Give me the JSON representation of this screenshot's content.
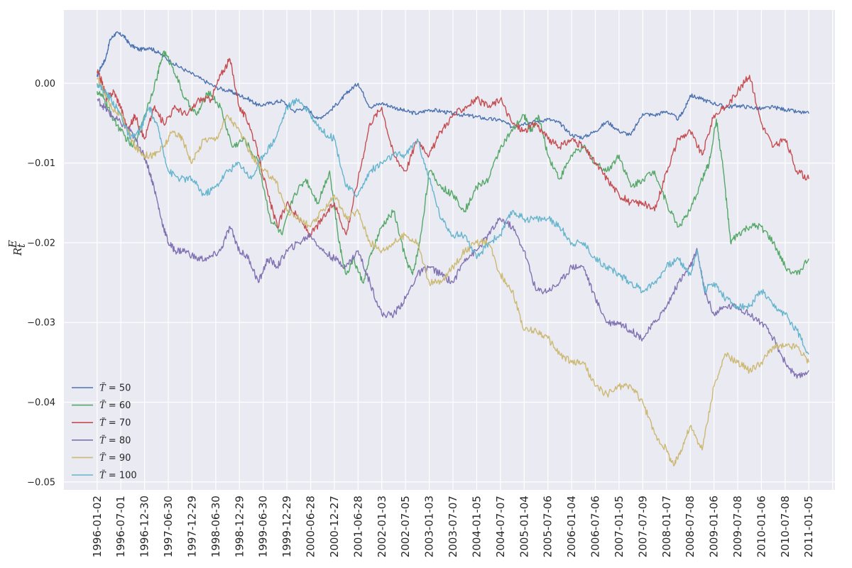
{
  "chart_data": {
    "type": "line",
    "ylabel": "R_t^E",
    "ylim": [
      -0.051,
      0.0092
    ],
    "yticks": [
      0.0,
      -0.01,
      -0.02,
      -0.03,
      -0.04,
      -0.05
    ],
    "ytick_labels": [
      "0.00",
      "−0.01",
      "−0.02",
      "−0.03",
      "−0.04",
      "−0.05"
    ],
    "x_ticks": [
      "1996-01-02",
      "1996-07-01",
      "1996-12-30",
      "1997-06-30",
      "1997-12-29",
      "1998-06-30",
      "1998-12-29",
      "1999-06-30",
      "1999-12-29",
      "2000-06-28",
      "2000-12-27",
      "2001-06-28",
      "2002-01-03",
      "2002-07-05",
      "2003-01-03",
      "2003-07-07",
      "2004-01-05",
      "2004-07-07",
      "2005-01-04",
      "2005-07-06",
      "2006-01-04",
      "2006-07-06",
      "2007-01-05",
      "2007-07-09",
      "2008-01-07",
      "2008-07-08",
      "2009-01-06",
      "2009-07-08",
      "2010-01-06",
      "2010-07-08",
      "2011-01-05"
    ],
    "xlim": [
      -1.4,
      31.1
    ],
    "grid": true,
    "legend_placement": "bottom-left",
    "colors": {
      "background": "#eaeaf2",
      "grid": "#ffffff",
      "text": "#262626"
    },
    "series": [
      {
        "name": "T = 50",
        "color": "#4c72b0",
        "x": [
          0,
          0.15,
          0.35,
          0.55,
          0.8,
          1.1,
          1.4,
          1.8,
          2.2,
          2.6,
          3.2,
          3.8,
          4.4,
          5.0,
          5.6,
          6.0,
          6.4,
          6.8,
          7.3,
          7.8,
          8.3,
          8.8,
          9.3,
          9.8,
          10.3,
          10.6,
          11.0,
          11.5,
          12.0,
          12.5,
          13.0,
          13.5,
          14.0,
          14.5,
          15.0,
          15.5,
          16.0,
          16.5,
          17.0,
          17.5,
          18.0,
          18.5,
          19.0,
          19.5,
          20.0,
          20.5,
          21.0,
          21.5,
          22.0,
          22.5,
          23.0,
          23.5,
          24.0,
          24.5,
          24.8,
          25.0,
          25.5,
          26.0,
          26.5,
          27.0,
          27.5,
          28.0,
          28.5,
          29.0,
          29.5,
          30.0
        ],
        "y": [
          0.0008,
          0.002,
          0.003,
          0.0055,
          0.0063,
          0.006,
          0.0048,
          0.0042,
          0.0045,
          0.0038,
          0.0025,
          0.0015,
          0.0005,
          -0.0005,
          -0.001,
          -0.0015,
          -0.002,
          -0.0028,
          -0.0025,
          -0.0022,
          -0.0035,
          -0.003,
          -0.0045,
          -0.0035,
          -0.002,
          -0.001,
          0.0,
          -0.003,
          -0.0025,
          -0.003,
          -0.0035,
          -0.0038,
          -0.0033,
          -0.0035,
          -0.0038,
          -0.004,
          -0.0042,
          -0.0045,
          -0.0046,
          -0.0055,
          -0.005,
          -0.0048,
          -0.0045,
          -0.005,
          -0.0065,
          -0.0068,
          -0.006,
          -0.0048,
          -0.006,
          -0.0065,
          -0.0038,
          -0.004,
          -0.0035,
          -0.0045,
          -0.003,
          -0.0015,
          -0.002,
          -0.0025,
          -0.003,
          -0.0028,
          -0.003,
          -0.0032,
          -0.003,
          -0.0033,
          -0.0036,
          -0.0038
        ]
      },
      {
        "name": "T = 60",
        "color": "#55a868",
        "x": [
          0,
          0.3,
          0.6,
          1.0,
          1.5,
          2.0,
          2.5,
          2.8,
          3.2,
          3.7,
          4.2,
          4.7,
          5.2,
          5.7,
          6.2,
          6.8,
          7.3,
          7.8,
          8.3,
          8.8,
          9.3,
          9.8,
          10.2,
          10.5,
          10.8,
          11.2,
          11.6,
          12.0,
          12.5,
          13.0,
          13.3,
          13.6,
          14.0,
          14.5,
          15.0,
          15.5,
          16.0,
          16.5,
          17.0,
          17.5,
          18.0,
          18.3,
          18.6,
          19.0,
          19.5,
          20.0,
          20.5,
          21.0,
          21.5,
          22.0,
          22.5,
          23.0,
          23.5,
          24.0,
          24.5,
          25.0,
          25.5,
          25.8,
          26.1,
          26.4,
          26.7,
          27.0,
          27.5,
          28.0,
          28.5,
          29.0,
          29.5,
          30.0
        ],
        "y": [
          -0.001,
          -0.002,
          -0.004,
          -0.006,
          -0.008,
          -0.004,
          0.0005,
          0.004,
          0.002,
          -0.002,
          -0.004,
          -0.001,
          -0.003,
          -0.008,
          -0.007,
          -0.01,
          -0.017,
          -0.019,
          -0.014,
          -0.012,
          -0.015,
          -0.011,
          -0.02,
          -0.024,
          -0.022,
          -0.025,
          -0.021,
          -0.018,
          -0.016,
          -0.022,
          -0.024,
          -0.02,
          -0.011,
          -0.013,
          -0.014,
          -0.016,
          -0.013,
          -0.012,
          -0.008,
          -0.006,
          -0.004,
          -0.006,
          -0.004,
          -0.009,
          -0.012,
          -0.009,
          -0.008,
          -0.01,
          -0.011,
          -0.009,
          -0.013,
          -0.012,
          -0.011,
          -0.015,
          -0.018,
          -0.016,
          -0.012,
          -0.01,
          -0.0045,
          -0.011,
          -0.02,
          -0.019,
          -0.018,
          -0.018,
          -0.02,
          -0.023,
          -0.024,
          -0.022
        ]
      },
      {
        "name": "T = 70",
        "color": "#c44e52",
        "x": [
          0,
          0.2,
          0.4,
          0.7,
          1.0,
          1.3,
          1.6,
          2.0,
          2.4,
          2.8,
          3.3,
          3.8,
          4.3,
          4.8,
          5.2,
          5.6,
          6.0,
          6.4,
          6.8,
          7.2,
          7.6,
          8.0,
          8.5,
          9.0,
          9.5,
          10.0,
          10.5,
          11.0,
          11.5,
          12.0,
          12.5,
          13.0,
          13.5,
          14.0,
          14.5,
          15.0,
          15.5,
          16.0,
          16.5,
          17.0,
          17.5,
          18.0,
          18.5,
          19.0,
          19.5,
          20.0,
          20.5,
          21.0,
          21.5,
          22.0,
          22.5,
          23.0,
          23.5,
          24.0,
          24.5,
          25.0,
          25.5,
          26.0,
          26.5,
          27.0,
          27.5,
          28.0,
          28.5,
          29.0,
          29.5,
          30.0
        ],
        "y": [
          0.0015,
          0.0002,
          -0.002,
          -0.001,
          -0.003,
          -0.006,
          -0.004,
          -0.007,
          -0.003,
          -0.005,
          -0.003,
          -0.004,
          -0.002,
          -0.002,
          0.001,
          0.003,
          -0.003,
          -0.005,
          -0.009,
          -0.014,
          -0.018,
          -0.015,
          -0.017,
          -0.019,
          -0.017,
          -0.015,
          -0.019,
          -0.012,
          -0.005,
          -0.003,
          -0.009,
          -0.011,
          -0.007,
          -0.009,
          -0.006,
          -0.004,
          -0.003,
          -0.002,
          -0.003,
          -0.002,
          -0.005,
          -0.006,
          -0.005,
          -0.007,
          -0.008,
          -0.007,
          -0.008,
          -0.01,
          -0.012,
          -0.014,
          -0.015,
          -0.015,
          -0.016,
          -0.011,
          -0.007,
          -0.006,
          -0.009,
          -0.004,
          -0.003,
          -0.001,
          0.001,
          -0.005,
          -0.008,
          -0.007,
          -0.011,
          -0.012
        ]
      },
      {
        "name": "T = 80",
        "color": "#8172b2",
        "x": [
          0,
          0.3,
          0.6,
          1.0,
          1.4,
          1.8,
          2.1,
          2.4,
          2.7,
          3.0,
          3.3,
          3.7,
          4.2,
          4.7,
          5.2,
          5.6,
          6.0,
          6.4,
          6.8,
          7.2,
          7.6,
          8.0,
          8.5,
          9.0,
          9.5,
          10.0,
          10.5,
          11.0,
          11.5,
          12.0,
          12.5,
          13.0,
          13.5,
          14.0,
          14.5,
          15.0,
          15.5,
          16.0,
          16.5,
          17.0,
          17.5,
          18.0,
          18.5,
          19.0,
          19.5,
          20.0,
          20.5,
          21.0,
          21.5,
          22.0,
          22.5,
          23.0,
          23.5,
          24.0,
          24.5,
          25.0,
          25.3,
          25.6,
          26.0,
          26.5,
          27.0,
          27.5,
          28.0,
          28.5,
          29.0,
          29.5,
          30.0
        ],
        "y": [
          -0.002,
          -0.003,
          -0.004,
          -0.005,
          -0.006,
          -0.008,
          -0.01,
          -0.013,
          -0.017,
          -0.02,
          -0.021,
          -0.021,
          -0.022,
          -0.022,
          -0.021,
          -0.018,
          -0.021,
          -0.022,
          -0.025,
          -0.022,
          -0.023,
          -0.021,
          -0.02,
          -0.019,
          -0.021,
          -0.022,
          -0.023,
          -0.021,
          -0.025,
          -0.029,
          -0.029,
          -0.027,
          -0.024,
          -0.023,
          -0.024,
          -0.025,
          -0.022,
          -0.021,
          -0.019,
          -0.017,
          -0.018,
          -0.021,
          -0.026,
          -0.026,
          -0.025,
          -0.023,
          -0.023,
          -0.027,
          -0.03,
          -0.03,
          -0.031,
          -0.032,
          -0.03,
          -0.028,
          -0.025,
          -0.023,
          -0.021,
          -0.026,
          -0.029,
          -0.028,
          -0.028,
          -0.029,
          -0.03,
          -0.032,
          -0.035,
          -0.037,
          -0.036
        ]
      },
      {
        "name": "T = 90",
        "color": "#ccb974",
        "x": [
          0,
          0.3,
          0.6,
          1.0,
          1.3,
          1.6,
          2.0,
          2.4,
          2.8,
          3.2,
          3.6,
          4.0,
          4.5,
          5.0,
          5.5,
          6.0,
          6.5,
          7.0,
          7.5,
          8.0,
          8.5,
          9.0,
          9.5,
          10.0,
          10.5,
          11.0,
          11.5,
          12.0,
          12.5,
          13.0,
          13.5,
          14.0,
          14.5,
          15.0,
          15.5,
          16.0,
          16.5,
          17.0,
          17.5,
          18.0,
          18.5,
          19.0,
          19.5,
          20.0,
          20.5,
          21.0,
          21.5,
          22.0,
          22.5,
          23.0,
          23.5,
          24.0,
          24.3,
          24.6,
          25.0,
          25.5,
          26.0,
          26.5,
          27.0,
          27.5,
          28.0,
          28.5,
          29.0,
          29.5,
          30.0
        ],
        "y": [
          0.0005,
          -0.001,
          -0.003,
          -0.004,
          -0.006,
          -0.008,
          -0.009,
          -0.009,
          -0.008,
          -0.006,
          -0.007,
          -0.01,
          -0.007,
          -0.007,
          -0.004,
          -0.006,
          -0.009,
          -0.011,
          -0.012,
          -0.016,
          -0.017,
          -0.018,
          -0.016,
          -0.014,
          -0.017,
          -0.016,
          -0.02,
          -0.021,
          -0.02,
          -0.019,
          -0.02,
          -0.025,
          -0.025,
          -0.023,
          -0.021,
          -0.02,
          -0.02,
          -0.024,
          -0.026,
          -0.031,
          -0.031,
          -0.032,
          -0.034,
          -0.035,
          -0.035,
          -0.038,
          -0.039,
          -0.038,
          -0.038,
          -0.04,
          -0.044,
          -0.046,
          -0.048,
          -0.046,
          -0.043,
          -0.046,
          -0.038,
          -0.034,
          -0.035,
          -0.036,
          -0.035,
          -0.033,
          -0.033,
          -0.033,
          -0.035
        ]
      },
      {
        "name": "T = 100",
        "color": "#64b5cd",
        "x": [
          0,
          0.3,
          0.6,
          1.0,
          1.4,
          1.8,
          2.2,
          2.6,
          3.0,
          3.5,
          4.0,
          4.5,
          5.0,
          5.5,
          6.0,
          6.5,
          7.0,
          7.5,
          8.0,
          8.5,
          9.0,
          9.5,
          10.0,
          10.5,
          11.0,
          11.5,
          12.0,
          12.5,
          13.0,
          13.5,
          14.0,
          14.5,
          15.0,
          15.5,
          16.0,
          16.5,
          17.0,
          17.5,
          18.0,
          18.5,
          19.0,
          19.5,
          20.0,
          20.5,
          21.0,
          21.5,
          22.0,
          22.5,
          23.0,
          23.5,
          24.0,
          24.5,
          25.0,
          25.3,
          25.6,
          26.0,
          26.5,
          27.0,
          27.5,
          28.0,
          28.5,
          29.0,
          29.5,
          30.0
        ],
        "y": [
          0.0,
          -0.001,
          -0.002,
          -0.004,
          -0.007,
          -0.006,
          -0.003,
          -0.006,
          -0.011,
          -0.012,
          -0.012,
          -0.014,
          -0.013,
          -0.011,
          -0.01,
          -0.012,
          -0.009,
          -0.007,
          -0.003,
          -0.002,
          -0.004,
          -0.006,
          -0.007,
          -0.013,
          -0.014,
          -0.011,
          -0.01,
          -0.009,
          -0.009,
          -0.007,
          -0.012,
          -0.017,
          -0.019,
          -0.019,
          -0.022,
          -0.02,
          -0.019,
          -0.016,
          -0.017,
          -0.017,
          -0.017,
          -0.018,
          -0.02,
          -0.02,
          -0.022,
          -0.023,
          -0.024,
          -0.025,
          -0.026,
          -0.025,
          -0.023,
          -0.022,
          -0.024,
          -0.021,
          -0.026,
          -0.025,
          -0.027,
          -0.028,
          -0.028,
          -0.026,
          -0.028,
          -0.029,
          -0.031,
          -0.034
        ]
      }
    ],
    "legend": [
      {
        "symbol": "T̃",
        "text": " = 50"
      },
      {
        "symbol": "T̃",
        "text": " = 60"
      },
      {
        "symbol": "T̃",
        "text": " = 70"
      },
      {
        "symbol": "T̃",
        "text": " = 80"
      },
      {
        "symbol": "T̃",
        "text": " = 90"
      },
      {
        "symbol": "T̃",
        "text": " = 100"
      }
    ]
  }
}
